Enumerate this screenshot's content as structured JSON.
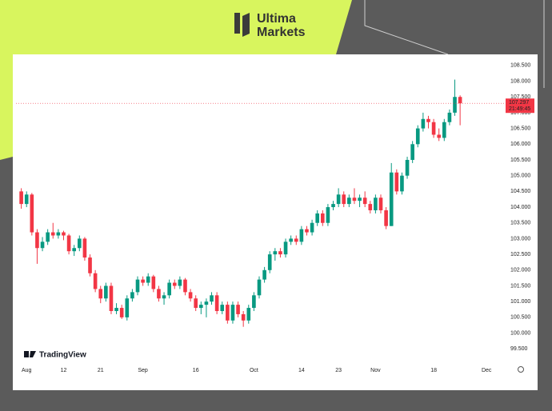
{
  "logo": {
    "line1": "Ultima",
    "line2": "Markets"
  },
  "chart_data": {
    "type": "candlestick",
    "watermark": "TradingView",
    "countdown": "21:49:45",
    "up_color": "#089981",
    "down_color": "#f23645",
    "grid": false,
    "open": [
      104.5,
      104.1,
      104.4,
      103.2,
      102.7,
      102.9,
      103.2,
      103.1,
      103.2,
      103.1,
      102.6,
      102.7,
      103.0,
      102.4,
      101.9,
      101.4,
      101.1,
      101.5,
      100.7,
      100.8,
      100.5,
      101.1,
      101.3,
      101.7,
      101.6,
      101.8,
      101.4,
      101.1,
      101.2,
      101.6,
      101.5,
      101.7,
      101.3,
      101.1,
      100.8,
      100.9,
      101.0,
      101.2,
      100.7,
      100.9,
      100.4,
      100.9,
      100.6,
      100.4,
      100.8,
      101.2,
      101.7,
      102.0,
      102.5,
      102.6,
      102.5,
      102.9,
      103.0,
      102.9,
      103.3,
      103.2,
      103.5,
      103.8,
      103.5,
      104.0,
      104.1,
      104.4,
      104.1,
      104.3,
      104.2,
      104.3,
      104.1,
      103.9,
      104.3,
      103.9,
      103.4,
      105.1,
      104.5,
      105.0,
      105.5,
      106.0,
      106.5,
      106.8,
      106.7,
      106.3,
      106.2,
      106.7,
      107.0,
      107.5
    ],
    "high": [
      104.6,
      104.5,
      104.45,
      103.3,
      103.05,
      103.3,
      103.5,
      103.3,
      103.25,
      103.15,
      102.8,
      103.1,
      103.05,
      102.5,
      102.0,
      101.5,
      101.6,
      101.6,
      100.95,
      100.9,
      101.2,
      101.4,
      101.8,
      101.8,
      101.9,
      101.85,
      101.5,
      101.3,
      101.7,
      101.7,
      101.8,
      101.75,
      101.4,
      101.2,
      101.0,
      101.1,
      101.3,
      101.3,
      101.0,
      101.0,
      101.0,
      101.0,
      100.7,
      100.9,
      101.3,
      101.8,
      102.1,
      102.6,
      102.7,
      102.7,
      103.0,
      103.1,
      103.1,
      103.4,
      103.4,
      103.6,
      103.9,
      103.9,
      104.1,
      104.2,
      104.6,
      104.5,
      104.4,
      104.6,
      104.4,
      104.5,
      104.2,
      104.4,
      104.4,
      104.0,
      105.4,
      105.2,
      105.1,
      105.6,
      106.1,
      106.6,
      107.0,
      106.9,
      106.8,
      106.5,
      106.8,
      107.1,
      108.05,
      107.55
    ],
    "low": [
      103.95,
      104.0,
      103.1,
      102.2,
      102.6,
      102.8,
      103.0,
      103.0,
      102.95,
      102.5,
      102.45,
      102.6,
      102.3,
      101.8,
      101.3,
      100.95,
      101.0,
      100.6,
      100.6,
      100.45,
      100.4,
      101.0,
      101.2,
      101.5,
      101.5,
      101.3,
      101.0,
      100.9,
      101.1,
      101.4,
      101.4,
      101.2,
      101.0,
      100.7,
      100.6,
      100.5,
      100.9,
      100.6,
      100.6,
      100.3,
      100.3,
      100.5,
      100.2,
      100.3,
      100.7,
      101.1,
      101.6,
      101.9,
      102.3,
      102.4,
      102.4,
      102.8,
      102.8,
      102.8,
      103.1,
      103.1,
      103.4,
      103.4,
      103.4,
      103.9,
      104.0,
      104.0,
      104.0,
      104.1,
      104.0,
      104.0,
      103.8,
      103.8,
      103.8,
      103.3,
      103.4,
      104.4,
      104.4,
      104.9,
      105.4,
      105.9,
      106.4,
      106.5,
      106.2,
      106.1,
      106.1,
      106.6,
      106.9,
      106.6
    ],
    "close": [
      104.1,
      104.4,
      103.2,
      102.7,
      102.9,
      103.2,
      103.1,
      103.2,
      103.1,
      102.6,
      102.7,
      103.0,
      102.4,
      101.9,
      101.4,
      101.1,
      101.5,
      100.7,
      100.8,
      100.5,
      101.1,
      101.3,
      101.7,
      101.6,
      101.8,
      101.4,
      101.1,
      101.2,
      101.6,
      101.5,
      101.7,
      101.3,
      101.1,
      100.8,
      100.9,
      101.0,
      101.2,
      100.7,
      100.9,
      100.4,
      100.9,
      100.6,
      100.4,
      100.8,
      101.2,
      101.7,
      102.0,
      102.5,
      102.6,
      102.5,
      102.9,
      103.0,
      102.9,
      103.3,
      103.2,
      103.5,
      103.8,
      103.5,
      104.0,
      104.1,
      104.4,
      104.1,
      104.3,
      104.2,
      104.3,
      104.1,
      103.9,
      104.3,
      103.9,
      103.4,
      105.1,
      104.5,
      105.0,
      105.5,
      106.0,
      106.5,
      106.8,
      106.7,
      106.3,
      106.2,
      106.7,
      107.0,
      107.5,
      107.297
    ],
    "xlim": [
      -1,
      91
    ],
    "xticks": [
      {
        "value": 1,
        "label": "Aug"
      },
      {
        "value": 8,
        "label": "12"
      },
      {
        "value": 15,
        "label": "21"
      },
      {
        "value": 23,
        "label": "Sep"
      },
      {
        "value": 33,
        "label": "16"
      },
      {
        "value": 44,
        "label": "Oct"
      },
      {
        "value": 53,
        "label": "14"
      },
      {
        "value": 60,
        "label": "23"
      },
      {
        "value": 67,
        "label": "Nov"
      },
      {
        "value": 78,
        "label": "18"
      },
      {
        "value": 88,
        "label": "Dec"
      }
    ],
    "ylim": [
      99.1,
      108.75
    ],
    "yticks": [
      {
        "value": 99.5,
        "label": "99.500"
      },
      {
        "value": 100,
        "label": "100.000"
      },
      {
        "value": 100.5,
        "label": "100.500"
      },
      {
        "value": 101,
        "label": "101.000"
      },
      {
        "value": 101.5,
        "label": "101.500"
      },
      {
        "value": 102,
        "label": "102.000"
      },
      {
        "value": 102.5,
        "label": "102.500"
      },
      {
        "value": 103,
        "label": "103.000"
      },
      {
        "value": 103.5,
        "label": "103.500"
      },
      {
        "value": 104,
        "label": "104.000"
      },
      {
        "value": 104.5,
        "label": "104.500"
      },
      {
        "value": 105,
        "label": "105.000"
      },
      {
        "value": 105.5,
        "label": "105.500"
      },
      {
        "value": 106,
        "label": "106.000"
      },
      {
        "value": 106.5,
        "label": "106.500"
      },
      {
        "value": 107,
        "label": "107.000"
      },
      {
        "value": 107.5,
        "label": "107.500"
      },
      {
        "value": 108,
        "label": "108.000"
      },
      {
        "value": 108.5,
        "label": "108.500"
      }
    ]
  }
}
